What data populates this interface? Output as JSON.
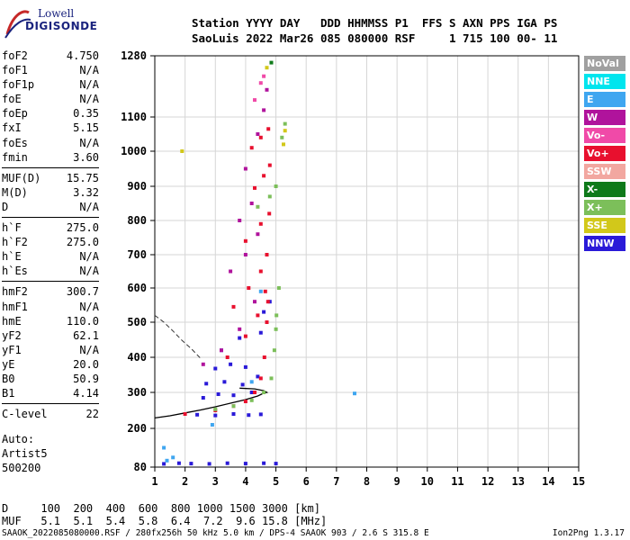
{
  "logo": {
    "top": "Lowell",
    "bottom": "DIGISONDE"
  },
  "header": {
    "line1": "Station YYYY DAY   DDD HHMMSS P1  FFS S AXN PPS IGA PS",
    "line2": "SaoLuis 2022 Mar26 085 080000 RSF     1 715 100 00- 11"
  },
  "parameters": [
    {
      "name": "foF2",
      "value": "4.750"
    },
    {
      "name": "foF1",
      "value": "N/A"
    },
    {
      "name": "foF1p",
      "value": "N/A"
    },
    {
      "name": "foE",
      "value": "N/A"
    },
    {
      "name": "foEp",
      "value": "0.35"
    },
    {
      "name": "fxI",
      "value": "5.15"
    },
    {
      "name": "foEs",
      "value": "N/A"
    },
    {
      "name": "fmin",
      "value": "3.60"
    },
    {
      "name": "MUF(D)",
      "value": "15.75"
    },
    {
      "name": "M(D)",
      "value": "3.32"
    },
    {
      "name": "D",
      "value": "N/A"
    },
    {
      "name": "h`F",
      "value": "275.0"
    },
    {
      "name": "h`F2",
      "value": "275.0"
    },
    {
      "name": "h`E",
      "value": "N/A"
    },
    {
      "name": "h`Es",
      "value": "N/A"
    },
    {
      "name": "hmF2",
      "value": "300.7"
    },
    {
      "name": "hmF1",
      "value": "N/A"
    },
    {
      "name": "hmE",
      "value": "110.0"
    },
    {
      "name": "yF2",
      "value": "62.1"
    },
    {
      "name": "yF1",
      "value": "N/A"
    },
    {
      "name": "yE",
      "value": "20.0"
    },
    {
      "name": "B0",
      "value": "50.9"
    },
    {
      "name": "B1",
      "value": "4.14"
    },
    {
      "name": "C-level",
      "value": "22"
    }
  ],
  "auto": {
    "label": "Auto:",
    "software": "Artist5",
    "version": "500200"
  },
  "legend": [
    {
      "label": "NoVal",
      "color": "#a0a0a0"
    },
    {
      "label": "NNE",
      "color": "#00e5ee"
    },
    {
      "label": "E",
      "color": "#3fa6f0"
    },
    {
      "label": "W",
      "color": "#b0139c"
    },
    {
      "label": "Vo-",
      "color": "#f04aa8"
    },
    {
      "label": "Vo+",
      "color": "#e8102e"
    },
    {
      "label": "SSW",
      "color": "#f2a7a0"
    },
    {
      "label": "X-",
      "color": "#0f7a1a"
    },
    {
      "label": "X+",
      "color": "#7cbf5a"
    },
    {
      "label": "SSE",
      "color": "#d2c81a"
    },
    {
      "label": "NNW",
      "color": "#2a1ad8"
    }
  ],
  "chart_data": {
    "type": "scatter",
    "xlim": [
      1,
      15
    ],
    "ylim": [
      80,
      1280
    ],
    "x_ticks": [
      "1",
      "2",
      "3",
      "4",
      "5",
      "6",
      "7",
      "8",
      "9",
      "10",
      "11",
      "12",
      "13",
      "14",
      "15"
    ],
    "y_ticks": [
      "80",
      "200",
      "300",
      "400",
      "500",
      "600",
      "700",
      "800",
      "900",
      "1000",
      "1100",
      "1280"
    ],
    "grid": true,
    "series": [
      {
        "name": "NNW",
        "color": "#2a1ad8",
        "points": [
          [
            1.3,
            90
          ],
          [
            1.8,
            92
          ],
          [
            2.2,
            91
          ],
          [
            2.8,
            90
          ],
          [
            3.4,
            92
          ],
          [
            4.0,
            91
          ],
          [
            4.6,
            92
          ],
          [
            5.0,
            91
          ],
          [
            2.4,
            238
          ],
          [
            3.0,
            236
          ],
          [
            3.6,
            240
          ],
          [
            4.1,
            237
          ],
          [
            4.5,
            239
          ],
          [
            2.6,
            285
          ],
          [
            3.1,
            295
          ],
          [
            3.6,
            292
          ],
          [
            4.2,
            300
          ],
          [
            2.7,
            325
          ],
          [
            3.3,
            330
          ],
          [
            3.9,
            322
          ],
          [
            4.4,
            345
          ],
          [
            3.0,
            368
          ],
          [
            3.5,
            380
          ],
          [
            4.0,
            372
          ],
          [
            4.5,
            470
          ],
          [
            3.2,
            420
          ],
          [
            3.8,
            455
          ],
          [
            4.6,
            530
          ],
          [
            4.8,
            560
          ]
        ]
      },
      {
        "name": "Vo+",
        "color": "#e8102e",
        "points": [
          [
            2.0,
            240
          ],
          [
            3.0,
            250
          ],
          [
            3.6,
            262
          ],
          [
            4.0,
            275
          ],
          [
            4.3,
            300
          ],
          [
            4.5,
            340
          ],
          [
            4.62,
            400
          ],
          [
            4.7,
            500
          ],
          [
            4.74,
            560
          ],
          [
            3.4,
            400
          ],
          [
            4.0,
            460
          ],
          [
            4.4,
            520
          ],
          [
            4.65,
            590
          ],
          [
            3.6,
            545
          ],
          [
            4.1,
            600
          ],
          [
            4.5,
            650
          ],
          [
            4.7,
            700
          ],
          [
            4.0,
            740
          ],
          [
            4.5,
            790
          ],
          [
            4.78,
            820
          ],
          [
            4.3,
            895
          ],
          [
            4.6,
            930
          ],
          [
            4.8,
            960
          ],
          [
            4.2,
            1010
          ],
          [
            4.5,
            1040
          ],
          [
            4.75,
            1065
          ]
        ]
      },
      {
        "name": "X+",
        "color": "#7cbf5a",
        "points": [
          [
            3.0,
            253
          ],
          [
            3.6,
            262
          ],
          [
            4.2,
            278
          ],
          [
            4.6,
            300
          ],
          [
            4.85,
            340
          ],
          [
            4.95,
            420
          ],
          [
            5.0,
            480
          ],
          [
            5.02,
            520
          ],
          [
            4.4,
            840
          ],
          [
            4.8,
            870
          ],
          [
            5.0,
            900
          ],
          [
            5.1,
            600
          ],
          [
            5.2,
            1040
          ],
          [
            5.3,
            1080
          ]
        ]
      },
      {
        "name": "W",
        "color": "#b0139c",
        "points": [
          [
            2.6,
            380
          ],
          [
            3.2,
            420
          ],
          [
            3.8,
            480
          ],
          [
            4.3,
            560
          ],
          [
            3.5,
            650
          ],
          [
            4.0,
            700
          ],
          [
            4.4,
            760
          ],
          [
            3.8,
            800
          ],
          [
            4.2,
            850
          ],
          [
            4.0,
            950
          ],
          [
            4.4,
            1050
          ],
          [
            4.6,
            1120
          ],
          [
            4.7,
            1180
          ]
        ]
      },
      {
        "name": "E",
        "color": "#3fa6f0",
        "points": [
          [
            1.4,
            100
          ],
          [
            1.6,
            110
          ],
          [
            1.3,
            140
          ],
          [
            2.9,
            210
          ],
          [
            4.2,
            330
          ],
          [
            4.5,
            590
          ],
          [
            7.6,
            297
          ]
        ]
      },
      {
        "name": "SSE",
        "color": "#d2c81a",
        "points": [
          [
            1.9,
            1000
          ],
          [
            4.7,
            1245
          ],
          [
            5.25,
            1020
          ],
          [
            5.3,
            1060
          ]
        ]
      },
      {
        "name": "Vo-",
        "color": "#f04aa8",
        "points": [
          [
            4.3,
            1150
          ],
          [
            4.5,
            1200
          ],
          [
            4.6,
            1220
          ]
        ]
      },
      {
        "name": "X-",
        "color": "#0f7a1a",
        "points": [
          [
            4.85,
            1260
          ]
        ]
      }
    ],
    "trace_curve": [
      [
        1.0,
        229
      ],
      [
        1.5,
        235
      ],
      [
        2.0,
        243
      ],
      [
        2.5,
        251
      ],
      [
        3.0,
        260
      ],
      [
        3.5,
        270
      ],
      [
        4.0,
        280
      ],
      [
        4.4,
        290
      ],
      [
        4.6,
        298
      ],
      [
        4.7,
        300
      ],
      [
        4.6,
        305
      ],
      [
        4.3,
        310
      ],
      [
        3.8,
        312
      ]
    ],
    "profile_curve": [
      [
        1.0,
        520
      ],
      [
        1.3,
        500
      ],
      [
        1.6,
        475
      ],
      [
        1.9,
        448
      ],
      [
        2.2,
        425
      ],
      [
        2.5,
        398
      ]
    ]
  },
  "bottom_table": {
    "row1": "D     100  200  400  600  800 1000 1500 3000 [km]",
    "row2": "MUF   5.1  5.1  5.4  5.8  6.4  7.2  9.6 15.8 [MHz]"
  },
  "footer": {
    "left": "SAAOK_2022085080000.RSF / 280fx256h 50 kHz 5.0 km / DPS-4 SAAOK 903 / 2.6 S 315.8 E",
    "right": "Ion2Png 1.3.17"
  }
}
